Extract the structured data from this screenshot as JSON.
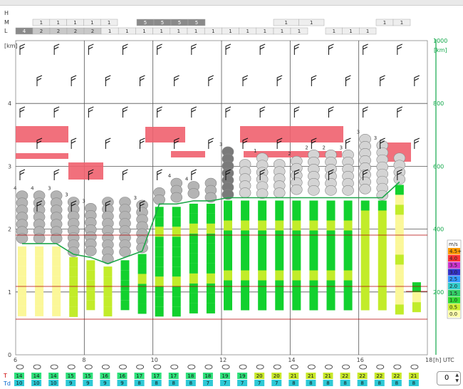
{
  "cloud_rows": [
    {
      "label": "H",
      "cells": []
    },
    {
      "label": "M",
      "cells": [
        {
          "from": 46,
          "to": 165,
          "values": [
            "1",
            "1",
            "1",
            "1",
            "1"
          ],
          "shade": "#eeeeee"
        },
        {
          "from": 192,
          "to": 288,
          "values": [
            "5",
            "5",
            "5",
            "5"
          ],
          "shade": "#8a8a8a"
        },
        {
          "from": 384,
          "to": 455,
          "values": [
            "1",
            "1"
          ],
          "shade": "#eeeeee"
        },
        {
          "from": 528,
          "to": 576,
          "values": [
            "1",
            "1"
          ],
          "shade": "#eeeeee"
        }
      ]
    },
    {
      "label": "L",
      "cells": [
        {
          "from": 22,
          "to": 46,
          "values": [
            "4"
          ],
          "shade": "#8a8a8a"
        },
        {
          "from": 46,
          "to": 142,
          "values": [
            "2",
            "2",
            "2",
            "2"
          ],
          "shade": "#c8c8c8"
        },
        {
          "from": 142,
          "to": 384,
          "values": [
            "1",
            "1",
            "1",
            "1",
            "1",
            "1",
            "1",
            "1",
            "1",
            "1"
          ],
          "shade": "#eeeeee"
        },
        {
          "from": 384,
          "to": 432,
          "values": [
            "1",
            "1"
          ],
          "shade": "#eeeeee"
        },
        {
          "from": 457,
          "to": 528,
          "values": [
            "1",
            "1",
            "1"
          ],
          "shade": "#eeeeee"
        }
      ]
    }
  ],
  "chart_data": {
    "type": "meteogram",
    "xlabel": "[h] UTC",
    "ylabel_left": "[km]",
    "ylabel_right": "[km]",
    "x_range": [
      6,
      18
    ],
    "x_ticks": [
      "6",
      "8",
      "10",
      "12",
      "14",
      "16",
      "18"
    ],
    "y_range_left": [
      0,
      5
    ],
    "y_ticks_left": [
      "0",
      "1",
      "2",
      "3",
      "4"
    ],
    "y_range_right": [
      0,
      1000
    ],
    "y_ticks_right": [
      "200",
      "400",
      "600",
      "800",
      "1000"
    ],
    "times": [
      6,
      6.5,
      7,
      7.5,
      8,
      8.5,
      9,
      9.5,
      10,
      10.5,
      11,
      11.5,
      12,
      12.5,
      13,
      13.5,
      14,
      14.5,
      15,
      15.5,
      16,
      16.5,
      17,
      17.5
    ],
    "cloud_column_tops_km": [
      2.6,
      2.6,
      2.6,
      2.5,
      2.4,
      2.5,
      2.5,
      2.45,
      2.65,
      2.8,
      2.75,
      2.8,
      3.3,
      3.1,
      3.2,
      3.1,
      3.15,
      3.25,
      3.25,
      3.25,
      3.5,
      3.4,
      3.2,
      null
    ],
    "cloud_cover_labels": [
      "4",
      "4",
      "3",
      "3",
      "3",
      "",
      "",
      "3",
      "",
      "4",
      "4",
      "",
      "3",
      "",
      "1",
      "",
      "2",
      "2",
      "2",
      "3",
      "3",
      "3",
      "",
      ""
    ],
    "boundary_layer_km": [
      1.77,
      1.77,
      1.77,
      1.6,
      1.55,
      1.45,
      1.55,
      1.65,
      2.4,
      2.4,
      2.45,
      2.45,
      2.5,
      2.5,
      2.5,
      2.5,
      2.5,
      2.5,
      2.5,
      2.5,
      2.5,
      2.5,
      2.75,
      null
    ],
    "wind_legend": {
      "unit": "m/s",
      "entries": [
        {
          "label": "4.5+",
          "color": "#ff9900"
        },
        {
          "label": "4.0",
          "color": "#ff3333"
        },
        {
          "label": "3.5",
          "color": "#cc33cc"
        },
        {
          "label": "3.0",
          "color": "#3333cc"
        },
        {
          "label": "2.5",
          "color": "#3399ff"
        },
        {
          "label": "2.0",
          "color": "#33cccc"
        },
        {
          "label": "1.5",
          "color": "#33cc66"
        },
        {
          "label": "1.0",
          "color": "#33dd33"
        },
        {
          "label": "0.5",
          "color": "#ccee33"
        },
        {
          "label": "0.0",
          "color": "#ffffaa"
        }
      ]
    },
    "temperature": {
      "label": "T",
      "values": [
        "14",
        "14",
        "14",
        "15",
        "15",
        "16",
        "16",
        "17",
        "17",
        "17",
        "18",
        "18",
        "19",
        "19",
        "20",
        "20",
        "21",
        "21",
        "21",
        "22",
        "22",
        "22",
        "22",
        "21"
      ]
    },
    "dewpoint": {
      "label": "Td",
      "values": [
        "10",
        "10",
        "10",
        "9",
        "9",
        "9",
        "9",
        "8",
        "8",
        "8",
        "8",
        "7",
        "7",
        "7",
        "7",
        "7",
        "8",
        "8",
        "8",
        "8",
        "8",
        "8",
        "8",
        "8"
      ]
    }
  },
  "colors": {
    "grid": "#555555",
    "cloud_light": "#d4d4d4",
    "cloud_mid": "#b4b4b4",
    "cloud_dark": "#7a7a7a",
    "inversion": "#f0606e",
    "bl_line": "#1fa64a",
    "right_axis": "#12a84a",
    "thermal_strong": "#12d12e",
    "thermal_mid": "#c2ec2a",
    "thermal_weak": "#fbf799",
    "red_line": "#b00000"
  },
  "controls": {
    "spinner_value": "0"
  },
  "icons": {
    "weather": "cloud-sun-icon",
    "wind": "wind-barb-icon"
  }
}
